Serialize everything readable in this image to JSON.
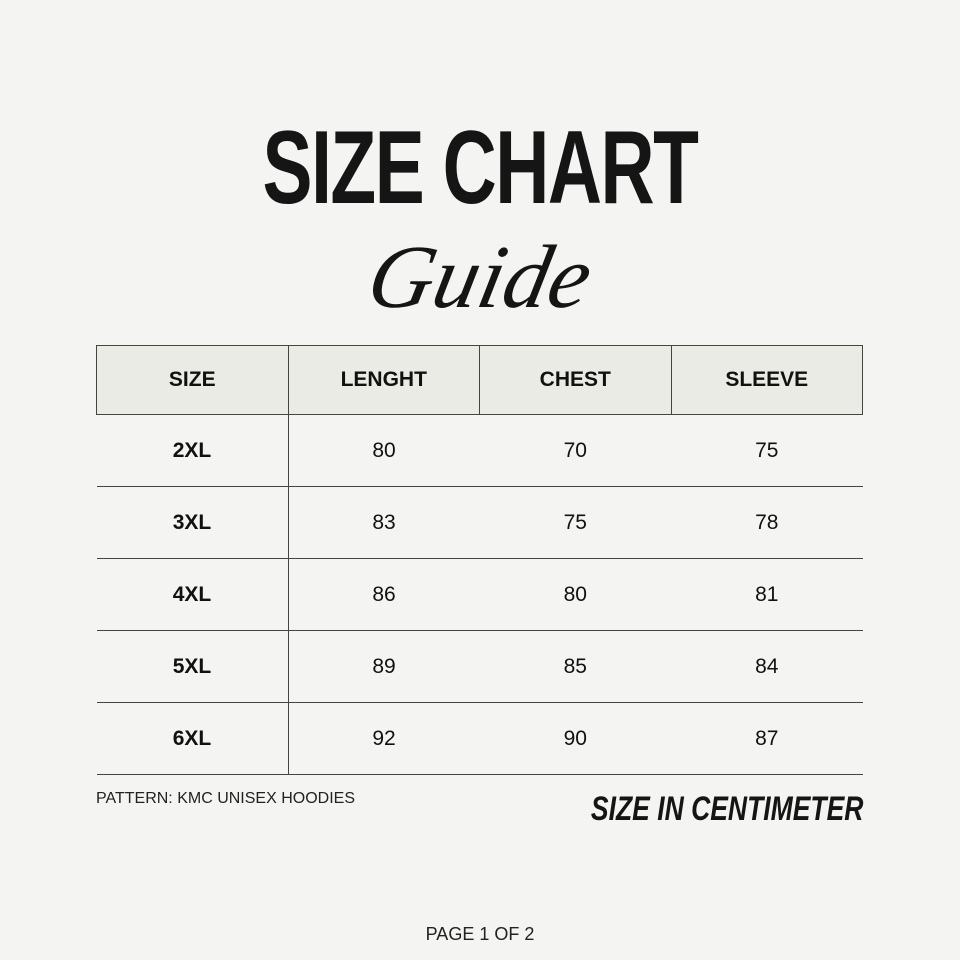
{
  "title": "SIZE CHART",
  "subtitle": "Guide",
  "table": {
    "headers": [
      "SIZE",
      "LENGHT",
      "CHEST",
      "SLEEVE"
    ],
    "rows": [
      [
        "2XL",
        "80",
        "70",
        "75"
      ],
      [
        "3XL",
        "83",
        "75",
        "78"
      ],
      [
        "4XL",
        "86",
        "80",
        "81"
      ],
      [
        "5XL",
        "89",
        "85",
        "84"
      ],
      [
        "6XL",
        "92",
        "90",
        "87"
      ]
    ]
  },
  "pattern": "PATTERN: KMC UNISEX HOODIES",
  "unit_note": "SIZE IN CENTIMETER",
  "page": "PAGE 1 OF 2"
}
